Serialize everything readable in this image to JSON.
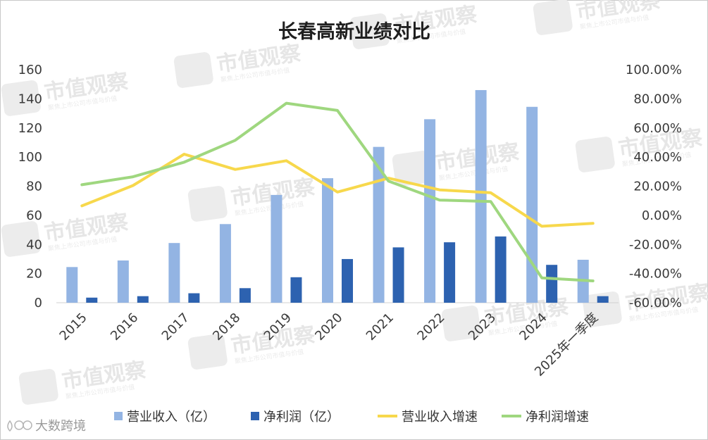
{
  "chart_data": {
    "type": "bar",
    "title": "长春高新业绩对比",
    "categories": [
      "2015",
      "2016",
      "2017",
      "2018",
      "2019",
      "2020",
      "2021",
      "2022",
      "2023",
      "2024",
      "2025年一季度"
    ],
    "series": [
      {
        "name": "营业收入（亿）",
        "type": "bar",
        "axis": "left",
        "color": "#93b4e3",
        "values": [
          24.5,
          29,
          41,
          54,
          74,
          85.5,
          107,
          126,
          146,
          134.5,
          29.5
        ]
      },
      {
        "name": "净利润（亿）",
        "type": "bar",
        "axis": "left",
        "color": "#2d62b0",
        "values": [
          3.5,
          4.5,
          6.5,
          10,
          17.5,
          30,
          38,
          41.5,
          45.5,
          26,
          4.5
        ]
      },
      {
        "name": "营业收入增速",
        "type": "line",
        "axis": "right",
        "color": "#f7d84c",
        "values": [
          6.5,
          20.5,
          42,
          31.5,
          37.5,
          16,
          25.5,
          17.5,
          15.5,
          -7.5,
          -5.5
        ]
      },
      {
        "name": "净利润增速",
        "type": "line",
        "axis": "right",
        "color": "#9fd77f",
        "values": [
          21,
          26.5,
          36.5,
          51.5,
          77,
          72,
          23.5,
          10.5,
          9.5,
          -43,
          -45
        ]
      }
    ],
    "yleft": {
      "ylim": [
        0,
        160
      ],
      "ticks": [
        "0",
        "20",
        "40",
        "60",
        "80",
        "100",
        "120",
        "140",
        "160"
      ]
    },
    "yright": {
      "ylim": [
        -60,
        100
      ],
      "ticks": [
        "-60.00%",
        "-40.00%",
        "-20.00%",
        "0.00%",
        "20.00%",
        "40.00%",
        "60.00%",
        "80.00%",
        "100.00%"
      ]
    },
    "legend": "bottom",
    "grid": false
  },
  "watermark": {
    "text": "市值观察",
    "sub": "聚焦上市公司市值与价值"
  },
  "footer": {
    "logo_text": "大数跨境"
  }
}
